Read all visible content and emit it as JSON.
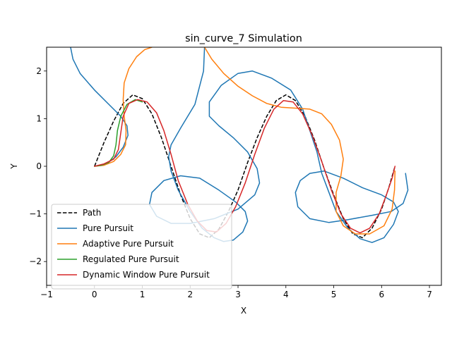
{
  "chart_data": {
    "type": "line",
    "title": "sin_curve_7 Simulation",
    "xlabel": "X",
    "ylabel": "Y",
    "xlim": [
      -1,
      7.25
    ],
    "ylim": [
      -2.5,
      2.5
    ],
    "xticks": [
      "−1",
      "0",
      "1",
      "2",
      "3",
      "4",
      "5",
      "6",
      "7"
    ],
    "yticks": [
      "−2",
      "−1",
      "0",
      "1",
      "2"
    ],
    "grid": false,
    "legend_position": "lower-left",
    "series": [
      {
        "name": "Path",
        "color": "#000000",
        "style": "dashed",
        "points": [
          [
            0,
            0
          ],
          [
            0.2,
            0.5
          ],
          [
            0.4,
            0.95
          ],
          [
            0.6,
            1.32
          ],
          [
            0.8,
            1.5
          ],
          [
            1.0,
            1.42
          ],
          [
            1.2,
            1.1
          ],
          [
            1.4,
            0.6
          ],
          [
            1.6,
            0
          ],
          [
            1.8,
            -0.6
          ],
          [
            2.0,
            -1.1
          ],
          [
            2.2,
            -1.42
          ],
          [
            2.4,
            -1.5
          ],
          [
            2.6,
            -1.32
          ],
          [
            2.8,
            -0.95
          ],
          [
            3.0,
            -0.5
          ],
          [
            3.2,
            0.08
          ],
          [
            3.4,
            0.6
          ],
          [
            3.6,
            1.05
          ],
          [
            3.8,
            1.38
          ],
          [
            4.0,
            1.5
          ],
          [
            4.2,
            1.38
          ],
          [
            4.4,
            1.05
          ],
          [
            4.6,
            0.55
          ],
          [
            4.8,
            -0.05
          ],
          [
            5.0,
            -0.6
          ],
          [
            5.2,
            -1.1
          ],
          [
            5.4,
            -1.42
          ],
          [
            5.6,
            -1.5
          ],
          [
            5.8,
            -1.3
          ],
          [
            6.0,
            -0.9
          ],
          [
            6.15,
            -0.45
          ],
          [
            6.28,
            0
          ]
        ]
      },
      {
        "name": "Pure Pursuit",
        "color": "#1f77b4",
        "style": "solid",
        "points": [
          [
            0,
            0
          ],
          [
            0.25,
            0.05
          ],
          [
            0.45,
            0.2
          ],
          [
            0.6,
            0.4
          ],
          [
            0.7,
            0.65
          ],
          [
            0.68,
            0.85
          ],
          [
            0.55,
            1.05
          ],
          [
            0.3,
            1.3
          ],
          [
            0,
            1.6
          ],
          [
            -0.3,
            1.95
          ],
          [
            -0.45,
            2.25
          ],
          [
            -0.5,
            2.5
          ],
          null,
          [
            2.3,
            2.5
          ],
          [
            2.28,
            2.0
          ],
          [
            2.1,
            1.3
          ],
          [
            1.8,
            0.8
          ],
          [
            1.6,
            0.45
          ],
          [
            1.55,
            0.2
          ],
          [
            1.6,
            -0.1
          ],
          [
            1.75,
            -0.5
          ],
          [
            2.0,
            -0.95
          ],
          [
            2.25,
            -1.3
          ],
          [
            2.5,
            -1.5
          ],
          [
            2.7,
            -1.58
          ],
          [
            2.9,
            -1.55
          ],
          [
            3.1,
            -1.38
          ],
          [
            3.2,
            -1.15
          ],
          [
            3.15,
            -0.95
          ],
          [
            2.95,
            -0.75
          ],
          [
            2.6,
            -0.5
          ],
          [
            2.2,
            -0.25
          ],
          [
            1.8,
            -0.2
          ],
          [
            1.45,
            -0.3
          ],
          [
            1.2,
            -0.55
          ],
          [
            1.15,
            -0.8
          ],
          [
            1.3,
            -1.05
          ],
          [
            1.6,
            -1.2
          ],
          [
            2.0,
            -1.2
          ],
          [
            2.5,
            -1.1
          ],
          [
            3.0,
            -0.9
          ],
          [
            3.35,
            -0.6
          ],
          [
            3.45,
            -0.35
          ],
          [
            3.4,
            -0.05
          ],
          [
            3.2,
            0.3
          ],
          [
            2.9,
            0.6
          ],
          [
            2.6,
            0.85
          ],
          [
            2.4,
            1.05
          ],
          [
            2.4,
            1.35
          ],
          [
            2.65,
            1.7
          ],
          [
            3.0,
            1.95
          ],
          [
            3.3,
            2.0
          ],
          [
            3.7,
            1.85
          ],
          [
            4.1,
            1.6
          ],
          [
            4.35,
            1.2
          ],
          [
            4.5,
            0.75
          ],
          [
            4.65,
            0.3
          ],
          [
            4.75,
            -0.15
          ],
          [
            4.9,
            -0.55
          ],
          [
            5.05,
            -0.95
          ],
          [
            5.3,
            -1.3
          ],
          [
            5.55,
            -1.52
          ],
          [
            5.8,
            -1.6
          ],
          [
            6.05,
            -1.5
          ],
          [
            6.25,
            -1.22
          ],
          [
            6.35,
            -0.95
          ],
          [
            6.25,
            -0.75
          ],
          [
            6.0,
            -0.6
          ],
          [
            5.6,
            -0.45
          ],
          [
            5.2,
            -0.25
          ],
          [
            4.8,
            -0.1
          ],
          [
            4.5,
            -0.15
          ],
          [
            4.3,
            -0.3
          ],
          [
            4.2,
            -0.55
          ],
          [
            4.25,
            -0.85
          ],
          [
            4.5,
            -1.1
          ],
          [
            4.9,
            -1.18
          ],
          [
            5.3,
            -1.12
          ],
          [
            5.8,
            -1.03
          ],
          [
            6.2,
            -0.95
          ],
          [
            6.45,
            -0.78
          ],
          [
            6.55,
            -0.5
          ],
          [
            6.5,
            -0.15
          ]
        ]
      },
      {
        "name": "Adaptive Pure Pursuit",
        "color": "#ff7f0e",
        "style": "solid",
        "points": [
          [
            0,
            0
          ],
          [
            0.2,
            0.02
          ],
          [
            0.4,
            0.1
          ],
          [
            0.55,
            0.25
          ],
          [
            0.65,
            0.45
          ],
          [
            0.66,
            0.75
          ],
          [
            0.62,
            1.05
          ],
          [
            0.6,
            1.4
          ],
          [
            0.62,
            1.75
          ],
          [
            0.72,
            2.05
          ],
          [
            0.88,
            2.3
          ],
          [
            1.05,
            2.45
          ],
          [
            1.2,
            2.5
          ],
          null,
          [
            2.3,
            2.5
          ],
          [
            2.45,
            2.25
          ],
          [
            2.7,
            1.95
          ],
          [
            3.0,
            1.68
          ],
          [
            3.3,
            1.48
          ],
          [
            3.6,
            1.32
          ],
          [
            3.9,
            1.24
          ],
          [
            4.2,
            1.22
          ],
          [
            4.5,
            1.2
          ],
          [
            4.75,
            1.1
          ],
          [
            4.95,
            0.88
          ],
          [
            5.12,
            0.55
          ],
          [
            5.2,
            0.15
          ],
          [
            5.15,
            -0.2
          ],
          [
            5.05,
            -0.55
          ],
          [
            5.05,
            -0.95
          ],
          [
            5.2,
            -1.25
          ],
          [
            5.45,
            -1.42
          ],
          [
            5.75,
            -1.42
          ],
          [
            6.05,
            -1.25
          ],
          [
            6.22,
            -0.9
          ],
          [
            6.27,
            -0.5
          ],
          [
            6.28,
            -0.1
          ]
        ]
      },
      {
        "name": "Regulated Pure Pursuit",
        "color": "#2ca02c",
        "style": "solid",
        "points": [
          [
            0,
            0
          ],
          [
            0.15,
            0.02
          ],
          [
            0.3,
            0.08
          ],
          [
            0.4,
            0.22
          ],
          [
            0.45,
            0.45
          ],
          [
            0.48,
            0.75
          ],
          [
            0.55,
            1.05
          ],
          [
            0.68,
            1.3
          ],
          [
            0.85,
            1.4
          ],
          [
            1.0,
            1.35
          ]
        ]
      },
      {
        "name": "Dynamic Window Pure Pursuit",
        "color": "#d62728",
        "style": "solid",
        "points": [
          [
            0,
            0
          ],
          [
            0.2,
            0.05
          ],
          [
            0.4,
            0.15
          ],
          [
            0.5,
            0.35
          ],
          [
            0.55,
            0.7
          ],
          [
            0.6,
            1.05
          ],
          [
            0.72,
            1.32
          ],
          [
            0.9,
            1.4
          ],
          [
            1.1,
            1.35
          ],
          [
            1.3,
            1.12
          ],
          [
            1.45,
            0.75
          ],
          [
            1.6,
            0.25
          ],
          [
            1.75,
            -0.3
          ],
          [
            1.95,
            -0.8
          ],
          [
            2.15,
            -1.15
          ],
          [
            2.35,
            -1.35
          ],
          [
            2.55,
            -1.38
          ],
          [
            2.75,
            -1.2
          ],
          [
            2.95,
            -0.85
          ],
          [
            3.15,
            -0.35
          ],
          [
            3.35,
            0.25
          ],
          [
            3.55,
            0.8
          ],
          [
            3.75,
            1.2
          ],
          [
            3.95,
            1.38
          ],
          [
            4.15,
            1.35
          ],
          [
            4.35,
            1.1
          ],
          [
            4.55,
            0.65
          ],
          [
            4.75,
            0.1
          ],
          [
            4.95,
            -0.5
          ],
          [
            5.15,
            -1.0
          ],
          [
            5.35,
            -1.3
          ],
          [
            5.55,
            -1.4
          ],
          [
            5.75,
            -1.3
          ],
          [
            5.95,
            -1.0
          ],
          [
            6.1,
            -0.6
          ],
          [
            6.22,
            -0.25
          ],
          [
            6.28,
            0
          ]
        ]
      }
    ]
  }
}
